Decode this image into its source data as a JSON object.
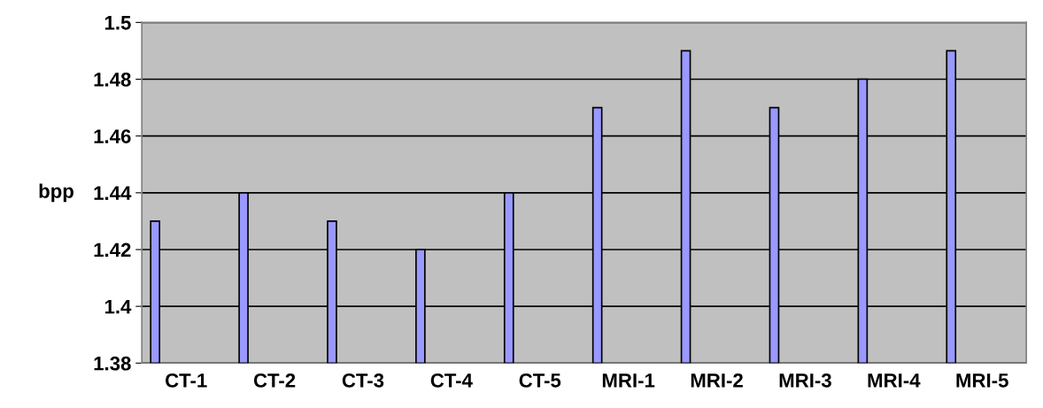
{
  "chart_data": {
    "type": "bar",
    "ylabel": "bpp",
    "categories": [
      "CT-1",
      "CT-2",
      "CT-3",
      "CT-4",
      "CT-5",
      "MRI-1",
      "MRI-2",
      "MRI-3",
      "MRI-4",
      "MRI-5"
    ],
    "values": [
      1.43,
      1.44,
      1.43,
      1.42,
      1.44,
      1.47,
      1.49,
      1.47,
      1.48,
      1.49
    ],
    "color": "#9999ff",
    "ylim": [
      1.38,
      1.5
    ],
    "yticks": [
      1.38,
      1.4,
      1.42,
      1.44,
      1.46,
      1.48,
      1.5
    ],
    "grid": "y"
  }
}
